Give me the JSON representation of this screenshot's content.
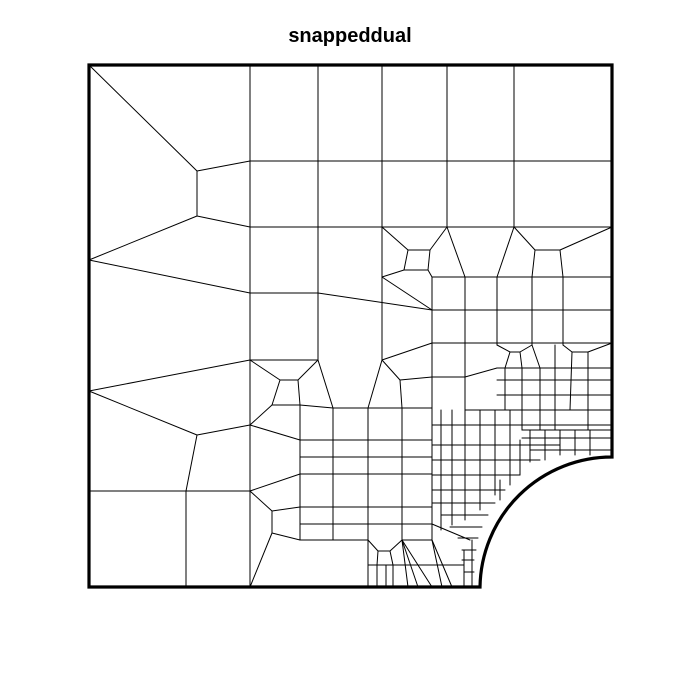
{
  "figure": {
    "title": "snappeddual",
    "type": "quad-mesh",
    "colors": {
      "mesh": "#000000",
      "background": "#ffffff"
    }
  }
}
